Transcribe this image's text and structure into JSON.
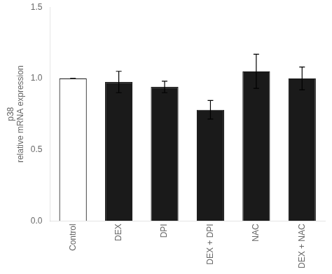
{
  "chart_data": {
    "type": "bar",
    "categories": [
      "Control",
      "DEX",
      "DPI",
      "DEX + DPI",
      "NAC",
      "DEX + NAC"
    ],
    "values": [
      1.0,
      0.975,
      0.94,
      0.78,
      1.05,
      1.0
    ],
    "errors": [
      0.0,
      0.075,
      0.04,
      0.065,
      0.12,
      0.08
    ],
    "colors": [
      "white",
      "#1a1a1a",
      "#1a1a1a",
      "#1a1a1a",
      "#1a1a1a",
      "#1a1a1a"
    ],
    "ylabel": [
      "p38",
      "relative mRNA expression"
    ],
    "ylim": [
      0,
      1.5
    ],
    "yticks": [
      {
        "value": 0.0,
        "label": "0.0"
      },
      {
        "value": 0.5,
        "label": "0.5"
      },
      {
        "value": 1.0,
        "label": "1.0"
      },
      {
        "value": 1.5,
        "label": "1.5"
      }
    ],
    "grid": false
  }
}
